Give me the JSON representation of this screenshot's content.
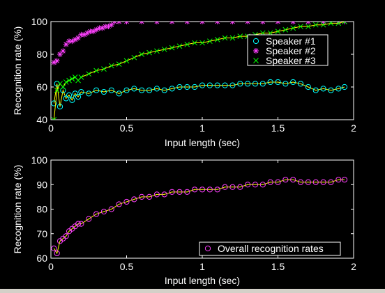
{
  "figure": {
    "background": "#000000",
    "axes_color": "#ffffff"
  },
  "chart_data": [
    {
      "type": "scatter",
      "xlabel": "Input length (sec)",
      "ylabel": "Recognition rate (%)",
      "xlim": [
        0,
        2
      ],
      "ylim": [
        40,
        100
      ],
      "xticks": [
        "0",
        "0.5",
        "1",
        "1.5",
        "2"
      ],
      "yticks": [
        "40",
        "60",
        "80",
        "100"
      ],
      "grid": false,
      "legend_position": "top-right",
      "series": [
        {
          "name": "Speaker #1",
          "marker": "circle",
          "color": "#00ffff",
          "line_color": "#ffff00",
          "x": [
            0.02,
            0.04,
            0.06,
            0.08,
            0.1,
            0.12,
            0.14,
            0.16,
            0.18,
            0.2,
            0.25,
            0.3,
            0.35,
            0.4,
            0.45,
            0.5,
            0.55,
            0.6,
            0.65,
            0.7,
            0.75,
            0.8,
            0.85,
            0.9,
            0.95,
            1.0,
            1.05,
            1.1,
            1.15,
            1.2,
            1.25,
            1.3,
            1.35,
            1.4,
            1.45,
            1.5,
            1.55,
            1.6,
            1.65,
            1.7,
            1.75,
            1.8,
            1.85,
            1.9,
            1.94
          ],
          "y": [
            50,
            62,
            48,
            58,
            53,
            55,
            52,
            56,
            54,
            57,
            56,
            58,
            57,
            58,
            56,
            58,
            59,
            58,
            58,
            59,
            58,
            59,
            60,
            60,
            60,
            61,
            61,
            61,
            61,
            61,
            62,
            62,
            62,
            62,
            63,
            63,
            62,
            63,
            62,
            60,
            58,
            59,
            58,
            59,
            60
          ]
        },
        {
          "name": "Speaker #2",
          "marker": "star",
          "color": "#ff40ff",
          "x": [
            0.02,
            0.04,
            0.06,
            0.08,
            0.1,
            0.12,
            0.14,
            0.16,
            0.18,
            0.2,
            0.22,
            0.24,
            0.26,
            0.28,
            0.3,
            0.32,
            0.34,
            0.36,
            0.38,
            0.4,
            0.42,
            0.45,
            0.5,
            0.6,
            0.7,
            0.8,
            0.9,
            1.0,
            1.1,
            1.2,
            1.3,
            1.4,
            1.5,
            1.6,
            1.7,
            1.8,
            1.9,
            1.94
          ],
          "y": [
            75,
            76,
            80,
            82,
            86,
            88,
            88,
            89,
            90,
            92,
            92,
            93,
            94,
            94,
            95,
            96,
            96,
            97,
            97,
            98,
            100,
            100,
            100,
            100,
            100,
            100,
            100,
            100,
            100,
            100,
            100,
            100,
            100,
            100,
            100,
            100,
            100,
            100
          ]
        },
        {
          "name": "Speaker #3",
          "marker": "x",
          "color": "#00ff00",
          "line_color": "#ffff00",
          "x": [
            0.02,
            0.04,
            0.06,
            0.08,
            0.1,
            0.12,
            0.14,
            0.16,
            0.18,
            0.2,
            0.25,
            0.3,
            0.35,
            0.4,
            0.45,
            0.5,
            0.55,
            0.6,
            0.65,
            0.7,
            0.75,
            0.8,
            0.85,
            0.9,
            0.95,
            1.0,
            1.05,
            1.1,
            1.15,
            1.2,
            1.25,
            1.3,
            1.35,
            1.4,
            1.45,
            1.5,
            1.55,
            1.6,
            1.65,
            1.7,
            1.75,
            1.8,
            1.85,
            1.9,
            1.94
          ],
          "y": [
            40,
            58,
            62,
            60,
            63,
            64,
            65,
            66,
            64,
            66,
            68,
            70,
            71,
            73,
            74,
            76,
            78,
            80,
            81,
            82,
            83,
            84,
            85,
            86,
            87,
            87,
            88,
            89,
            90,
            90,
            91,
            91,
            92,
            93,
            93,
            94,
            95,
            96,
            97,
            97,
            98,
            98,
            99,
            99,
            100
          ]
        }
      ]
    },
    {
      "type": "scatter",
      "xlabel": "Input length (sec)",
      "ylabel": "Recognition rate (%)",
      "xlim": [
        0,
        2
      ],
      "ylim": [
        60,
        100
      ],
      "xticks": [
        "0",
        "0.5",
        "1",
        "1.5",
        "2"
      ],
      "yticks": [
        "60",
        "70",
        "80",
        "90",
        "100"
      ],
      "grid": false,
      "legend_position": "bottom-right",
      "series": [
        {
          "name": "Overall recognition rates",
          "marker": "circle",
          "color": "#ff40ff",
          "line_color": "#ffff00",
          "x": [
            0.02,
            0.04,
            0.06,
            0.08,
            0.1,
            0.12,
            0.14,
            0.16,
            0.18,
            0.2,
            0.25,
            0.3,
            0.35,
            0.4,
            0.45,
            0.5,
            0.55,
            0.6,
            0.65,
            0.7,
            0.75,
            0.8,
            0.85,
            0.9,
            0.95,
            1.0,
            1.05,
            1.1,
            1.15,
            1.2,
            1.25,
            1.3,
            1.35,
            1.4,
            1.45,
            1.5,
            1.55,
            1.6,
            1.65,
            1.7,
            1.75,
            1.8,
            1.85,
            1.9,
            1.94
          ],
          "y": [
            64,
            62,
            67,
            68,
            69,
            71,
            72,
            73,
            74,
            74,
            76,
            78,
            79,
            80,
            82,
            83,
            84,
            85,
            85,
            86,
            86,
            87,
            87,
            87,
            88,
            88,
            88,
            88,
            89,
            89,
            89,
            90,
            90,
            90,
            91,
            91,
            92,
            92,
            91,
            91,
            91,
            91,
            91,
            92,
            92
          ]
        }
      ]
    }
  ]
}
